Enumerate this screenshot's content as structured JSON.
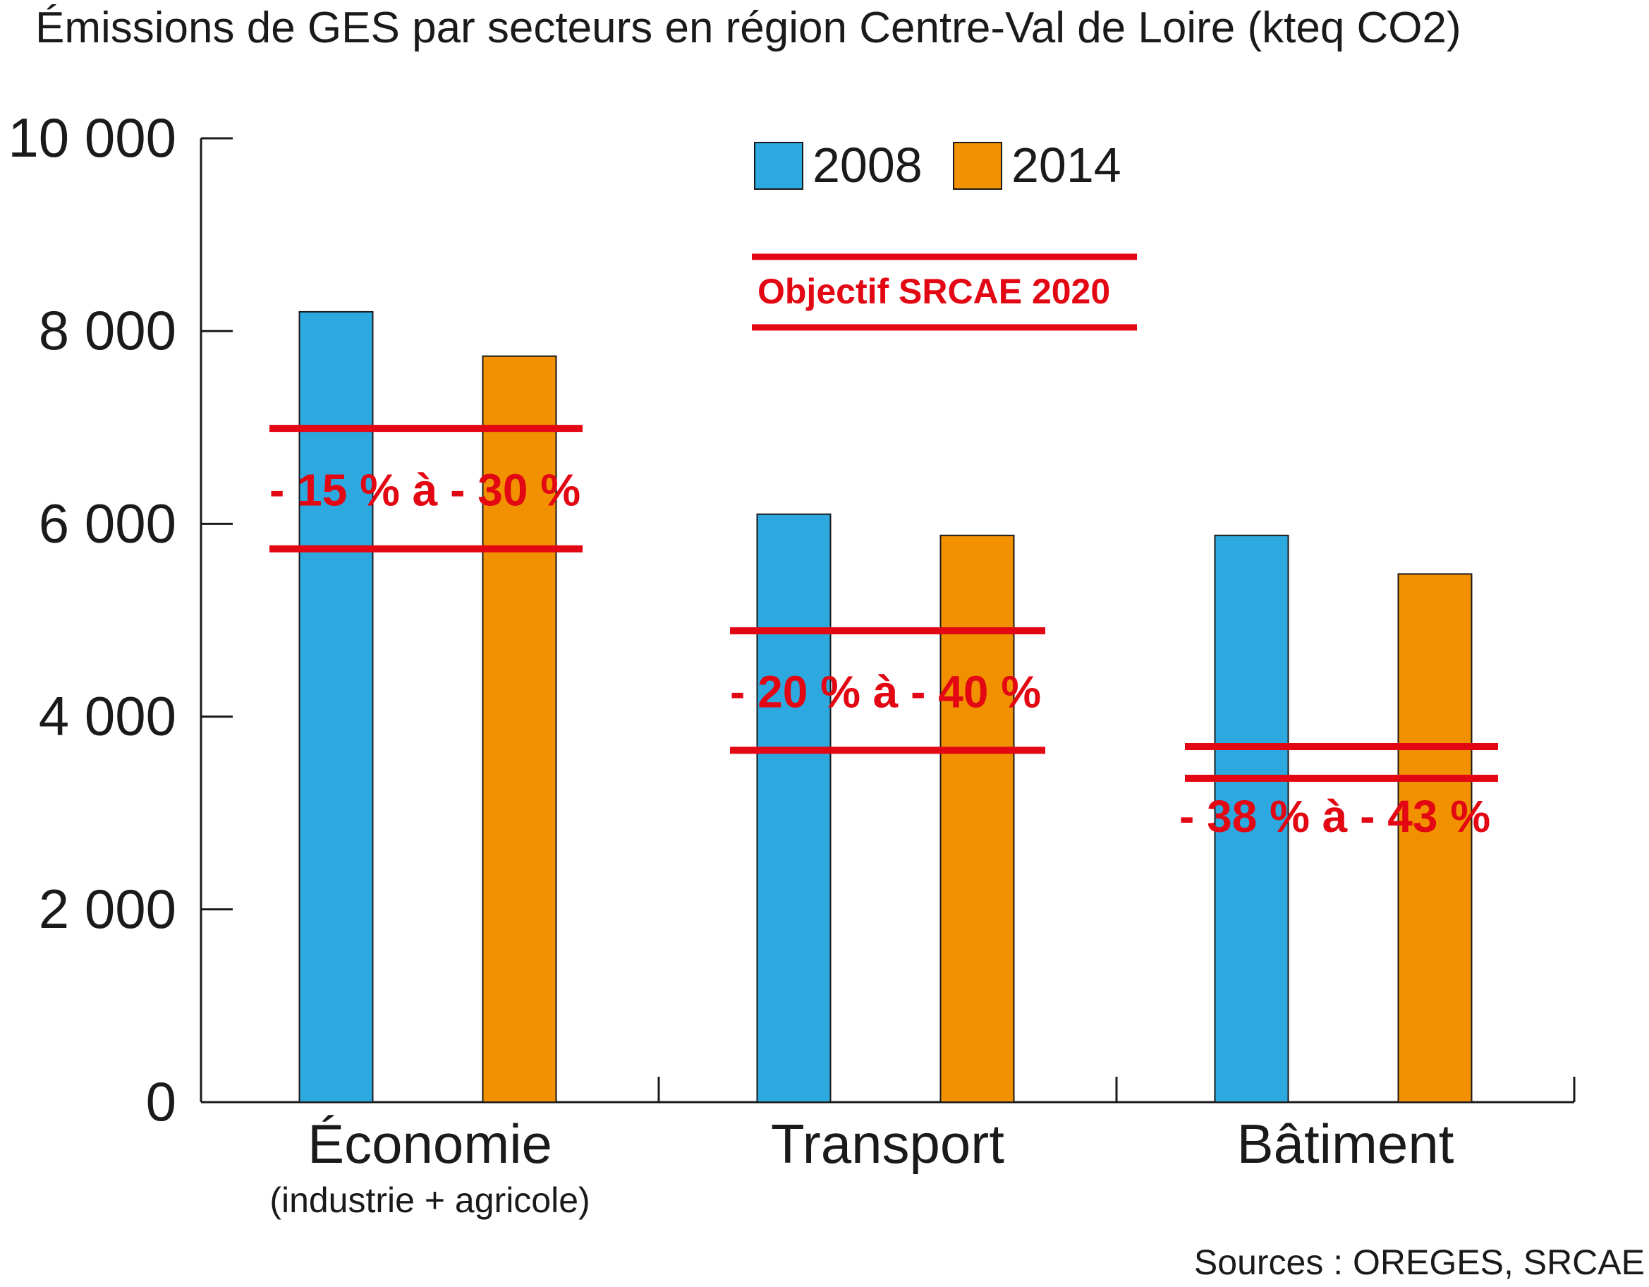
{
  "chart_data": {
    "type": "bar",
    "title": "Émissions de GES par secteurs en région Centre-Val de Loire (kteq CO2)",
    "categories": [
      "Économie",
      "Transport",
      "Bâtiment"
    ],
    "category_sublabels": [
      "(industrie + agricole)",
      "",
      ""
    ],
    "series": [
      {
        "name": "2008",
        "color": "#2ea9e0",
        "values": [
          8200,
          6100,
          5880
        ]
      },
      {
        "name": "2014",
        "color": "#f29100",
        "values": [
          7740,
          5880,
          5480
        ]
      }
    ],
    "ylim": [
      0,
      10000
    ],
    "yticks": [
      0,
      2000,
      4000,
      6000,
      8000,
      10000
    ],
    "ytick_labels": [
      "0",
      "2 000",
      "4 000",
      "6 000",
      "8 000",
      "10 000"
    ],
    "grid": false,
    "legend_position": "top-center",
    "target_legend_label": "Objectif SRCAE 2020",
    "target_color": "#e30613",
    "targets": [
      {
        "category": "Économie",
        "label": "- 15 % à - 30 %",
        "upper": 6990,
        "lower": 5740
      },
      {
        "category": "Transport",
        "label": "- 20 % à - 40 %",
        "upper": 4890,
        "lower": 3650
      },
      {
        "category": "Bâtiment",
        "label": "- 38 % à - 43 %",
        "upper": 3690,
        "lower": 3360
      }
    ],
    "source": "Sources : OREGES, SRCAE"
  }
}
